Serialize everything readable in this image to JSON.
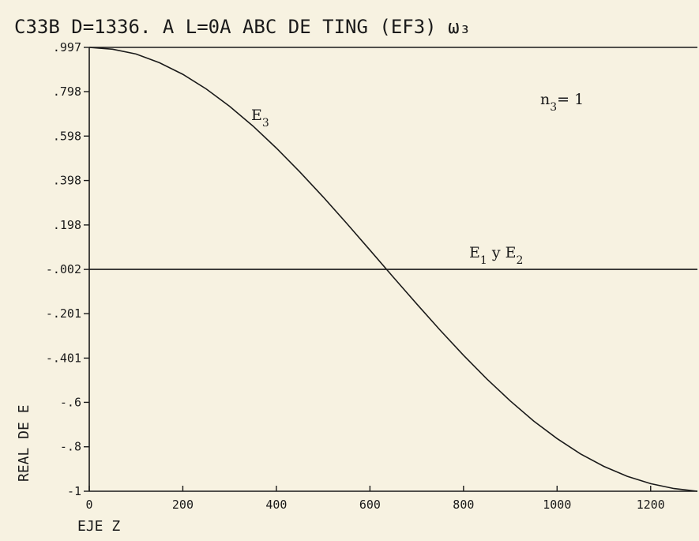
{
  "chart_data": {
    "type": "line",
    "title": "C33B  D=1336.  A  L=0A  ABC DE TING  (EF3) ω₃",
    "xlabel": "EJE Z",
    "ylabel": "REAL DE E",
    "xlim": [
      0,
      1300
    ],
    "ylim": [
      -1,
      0.997
    ],
    "x_ticks": [
      {
        "value": 0,
        "label": "0"
      },
      {
        "value": 200,
        "label": "200"
      },
      {
        "value": 400,
        "label": "400"
      },
      {
        "value": 600,
        "label": "600"
      },
      {
        "value": 800,
        "label": "800"
      },
      {
        "value": 1000,
        "label": "1000"
      },
      {
        "value": 1200,
        "label": "1200"
      }
    ],
    "y_ticks": [
      {
        "value": 0.997,
        "label": ".997"
      },
      {
        "value": 0.798,
        "label": ".798"
      },
      {
        "value": 0.598,
        "label": ".598"
      },
      {
        "value": 0.398,
        "label": ".398"
      },
      {
        "value": 0.198,
        "label": ".198"
      },
      {
        "value": -0.002,
        "label": "-.002"
      },
      {
        "value": -0.201,
        "label": "-.201"
      },
      {
        "value": -0.401,
        "label": "-.401"
      },
      {
        "value": -0.6,
        "label": "-.6"
      },
      {
        "value": -0.8,
        "label": "-.8"
      },
      {
        "value": -1,
        "label": "-1"
      }
    ],
    "series": [
      {
        "name": "E3",
        "x": [
          0,
          50,
          100,
          150,
          200,
          250,
          300,
          350,
          400,
          450,
          500,
          550,
          600,
          650,
          700,
          750,
          800,
          850,
          900,
          950,
          1000,
          1050,
          1100,
          1150,
          1200,
          1250,
          1300
        ],
        "y": [
          0.997,
          0.989,
          0.967,
          0.928,
          0.876,
          0.81,
          0.732,
          0.643,
          0.544,
          0.437,
          0.324,
          0.206,
          0.085,
          -0.037,
          -0.157,
          -0.275,
          -0.388,
          -0.495,
          -0.594,
          -0.684,
          -0.763,
          -0.832,
          -0.888,
          -0.933,
          -0.966,
          -0.988,
          -1.0
        ]
      },
      {
        "name": "E1 y E2",
        "x": [
          0,
          1300
        ],
        "y": [
          -0.002,
          -0.002
        ]
      }
    ],
    "annotations": {
      "e3_label": "E",
      "e3_sub": "3",
      "n3_label": "n",
      "n3_sub": "3",
      "n3_value": "= 1",
      "e1e2_a": "E",
      "e1e2_a_sub": "1",
      "e1e2_mid": " y E",
      "e1e2_b_sub": "2"
    },
    "grid": false,
    "legend": "none"
  }
}
